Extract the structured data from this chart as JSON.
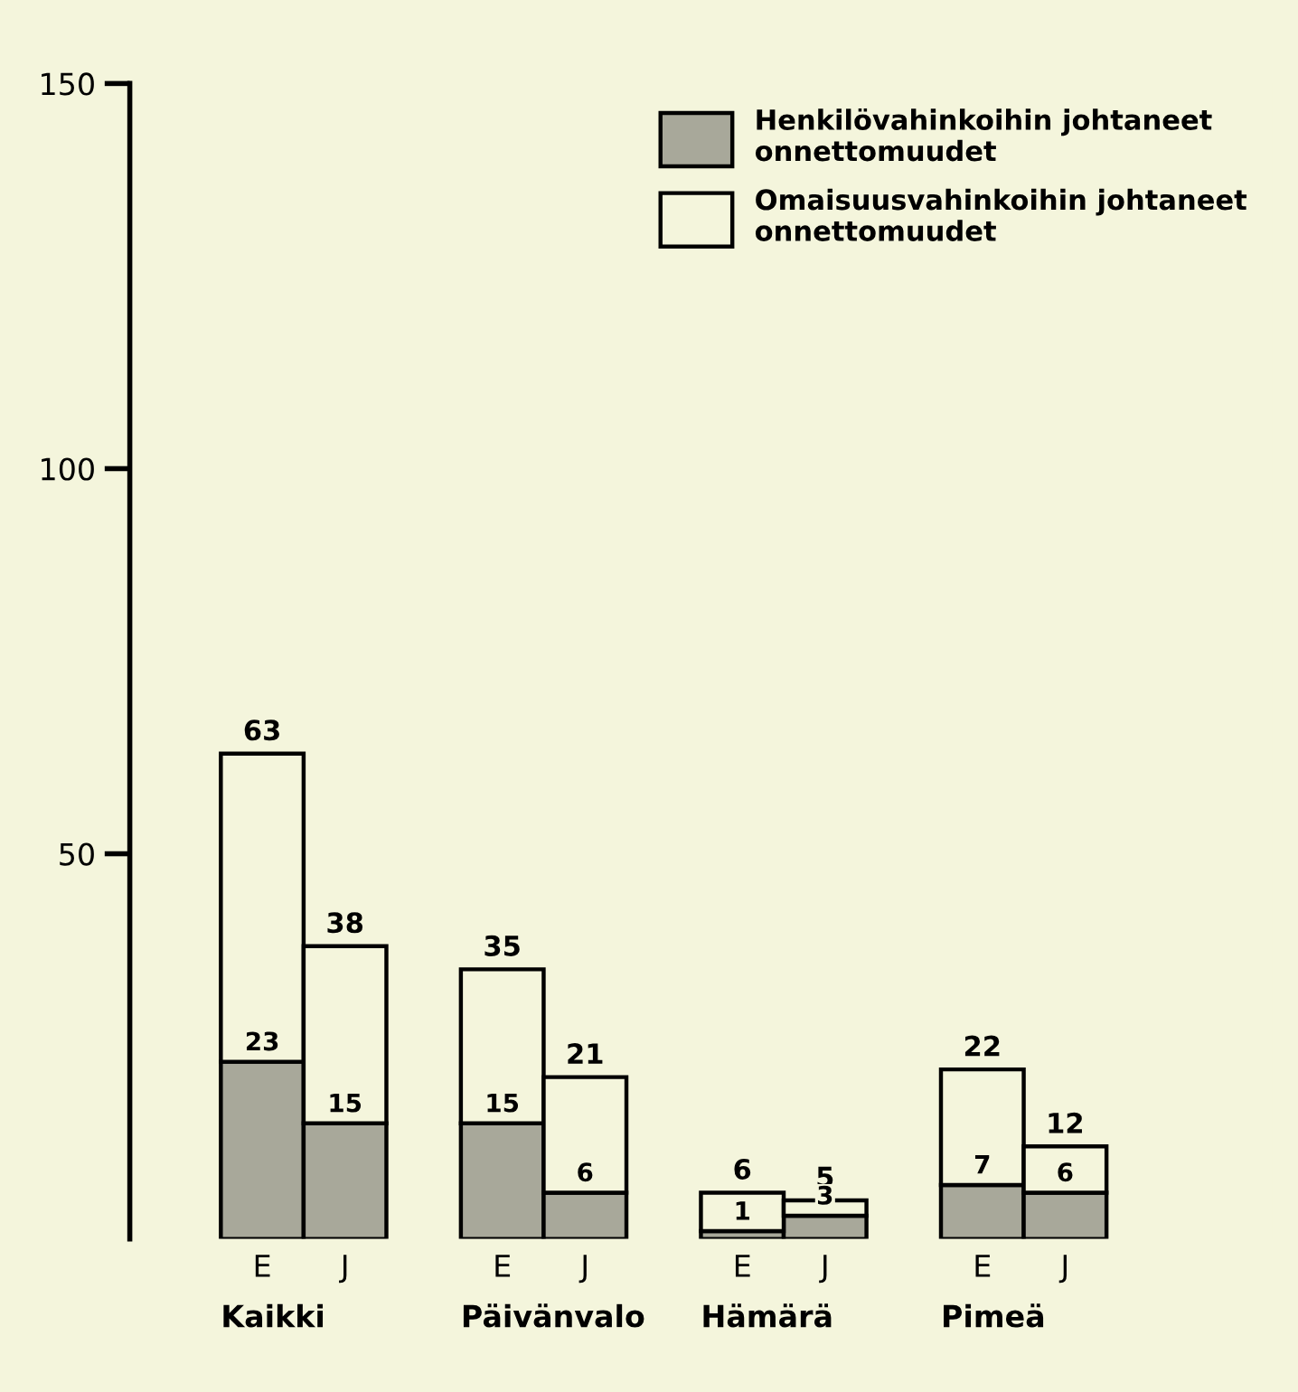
{
  "chart_data": {
    "type": "bar",
    "stacked": true,
    "categories": [
      "E",
      "J",
      "E",
      "J",
      "E",
      "J",
      "E",
      "J"
    ],
    "series": [
      {
        "name": "Henkilövahinkoihin johtaneet onnettomuudet",
        "color": "#a8a89a",
        "values": [
          23,
          15,
          15,
          6,
          1,
          3,
          7,
          6
        ],
        "value_labels": [
          "23",
          "15",
          "15",
          "6",
          "1",
          "3",
          "7",
          "6"
        ]
      },
      {
        "name": "Omaisuusvahinkoihin johtaneet onnettomuudet",
        "color": "#f4f5dc",
        "values": [
          40,
          23,
          20,
          15,
          5,
          2,
          15,
          6
        ]
      }
    ],
    "totals": [
      "63",
      "38",
      "35",
      "21",
      "6",
      "5",
      "22",
      "12"
    ],
    "annotations": [
      "Kaikki",
      "Päivänvalo",
      "Hämärä",
      "Pimeä"
    ],
    "ylim": [
      0,
      150
    ],
    "yticks": [
      50,
      100,
      150
    ],
    "grid": false,
    "legend": "top right"
  }
}
